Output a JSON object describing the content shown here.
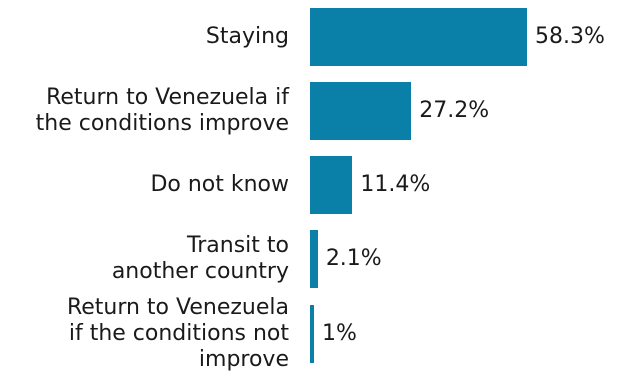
{
  "chart_data": {
    "type": "bar",
    "orientation": "horizontal",
    "categories": [
      "Staying",
      "Return to Venezuela if the conditions improve",
      "Do not know",
      "Transit to another country",
      "Return to Venezuela if the conditions not improve"
    ],
    "category_lines": [
      [
        "Staying"
      ],
      [
        "Return to Venezuela if",
        "the conditions improve"
      ],
      [
        "Do not know"
      ],
      [
        "Transit to",
        "another country"
      ],
      [
        "Return to Venezuela",
        "if the conditions not",
        "improve"
      ]
    ],
    "values": [
      58.3,
      27.2,
      11.4,
      2.1,
      1
    ],
    "value_labels": [
      "58.3%",
      "27.2%",
      "11.4%",
      "2.1%",
      "1%"
    ],
    "unit": "%",
    "bar_color": "#0a7fa8",
    "grid": false,
    "legend": "none"
  }
}
